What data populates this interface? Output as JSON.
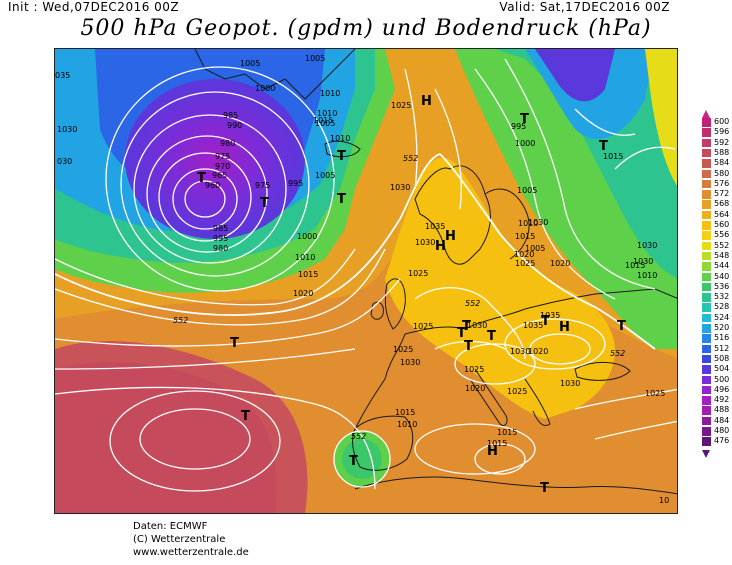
{
  "header": {
    "init": "Init : Wed,07DEC2016 00Z",
    "valid": "Valid: Sat,17DEC2016 00Z",
    "title": "500 hPa Geopot. (gpdm) und Bodendruck (hPa)"
  },
  "credits": {
    "line1": "Daten: ECMWF",
    "line2": "(C) Wetterzentrale",
    "line3": "www.wetterzentrale.de"
  },
  "legend": {
    "levels": [
      {
        "label": "600",
        "color": "#c4207a"
      },
      {
        "label": "596",
        "color": "#c22e70"
      },
      {
        "label": "592",
        "color": "#c23c66"
      },
      {
        "label": "588",
        "color": "#c44a5c"
      },
      {
        "label": "584",
        "color": "#c85852"
      },
      {
        "label": "580",
        "color": "#d06a48"
      },
      {
        "label": "576",
        "color": "#d87c3c"
      },
      {
        "label": "572",
        "color": "#e08e30"
      },
      {
        "label": "568",
        "color": "#e8a024"
      },
      {
        "label": "564",
        "color": "#f0b018"
      },
      {
        "label": "560",
        "color": "#f6c010"
      },
      {
        "label": "556",
        "color": "#f4d010"
      },
      {
        "label": "552",
        "color": "#e6dc18"
      },
      {
        "label": "548",
        "color": "#bcdc2a"
      },
      {
        "label": "544",
        "color": "#8ed83a"
      },
      {
        "label": "540",
        "color": "#5ed04a"
      },
      {
        "label": "536",
        "color": "#3cc86a"
      },
      {
        "label": "532",
        "color": "#2ec490"
      },
      {
        "label": "528",
        "color": "#28c4b4"
      },
      {
        "label": "524",
        "color": "#22bcd4"
      },
      {
        "label": "520",
        "color": "#22a4e4"
      },
      {
        "label": "516",
        "color": "#2486e8"
      },
      {
        "label": "512",
        "color": "#2a66e6"
      },
      {
        "label": "508",
        "color": "#3a4ae0"
      },
      {
        "label": "504",
        "color": "#5a38dc"
      },
      {
        "label": "500",
        "color": "#7a2cd8"
      },
      {
        "label": "496",
        "color": "#9424d0"
      },
      {
        "label": "492",
        "color": "#a420c4"
      },
      {
        "label": "488",
        "color": "#a01eb0"
      },
      {
        "label": "484",
        "color": "#8a1c9c"
      },
      {
        "label": "480",
        "color": "#761a8a"
      },
      {
        "label": "476",
        "color": "#5e1676"
      }
    ]
  },
  "map_labels": {
    "isobars": [
      "035",
      "1030",
      "030",
      "1005",
      "1000",
      "1005",
      "1010",
      "1015",
      "1010",
      "1005",
      "1025",
      "995",
      "1000",
      "985",
      "990",
      "980",
      "975",
      "970",
      "965",
      "960",
      "975",
      "995",
      "1010",
      "1005",
      "1000",
      "1010",
      "1015",
      "1020",
      "1030",
      "1035",
      "1030",
      "1025",
      "1005",
      "1010",
      "1015",
      "1020",
      "1025",
      "1030",
      "1015",
      "1030",
      "1035",
      "1030",
      "1035",
      "1020",
      "1025",
      "1025",
      "1030",
      "1015",
      "1010",
      "1015",
      "1025",
      "1020",
      "985",
      "995",
      "980",
      "1030",
      "1030",
      "1010",
      "1015",
      "1005",
      "1020",
      "1025",
      "1015",
      "1030",
      "1025",
      "10"
    ],
    "heights": [
      "552",
      "552",
      "552",
      "552",
      "552"
    ],
    "pressure_centers": [
      "T",
      "H",
      "T",
      "T",
      "T",
      "T",
      "T",
      "T",
      "T",
      "T",
      "H",
      "T",
      "H",
      "T",
      "T",
      "H",
      "T",
      "T",
      "T",
      "H",
      "T"
    ]
  },
  "colors": {
    "isobar": "#ffffff",
    "coast": "#1a1a1a",
    "frame": "#222222"
  }
}
